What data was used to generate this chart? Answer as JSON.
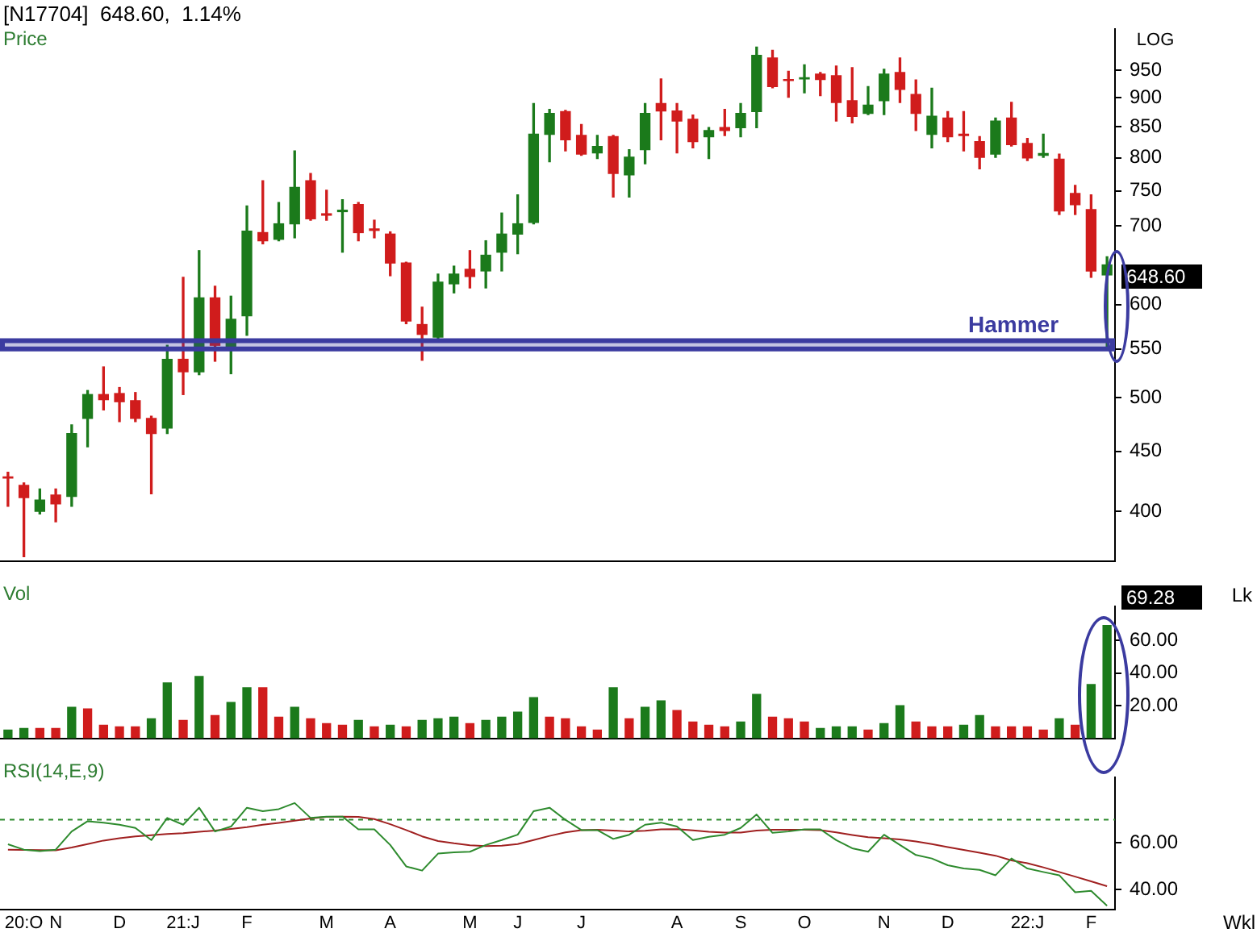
{
  "chart_data": [
    {
      "type": "candlestick",
      "title": "[N17704]  648.60,  1.14%",
      "ylabel": "Price",
      "categories": [
        null,
        null,
        null,
        null,
        null,
        null,
        null,
        null,
        null,
        null,
        null,
        null,
        null,
        null,
        null,
        null,
        null,
        null,
        null,
        null,
        null,
        null,
        null,
        null,
        null,
        null,
        null,
        null,
        null,
        null,
        null,
        null,
        null,
        null,
        null,
        null,
        null,
        null,
        null,
        null,
        null,
        null,
        null,
        null,
        null,
        null,
        null,
        null,
        null,
        null,
        null,
        null,
        null,
        null,
        null,
        null,
        null,
        null,
        null,
        null,
        null,
        null,
        null,
        null,
        null,
        null,
        null,
        null,
        null,
        null
      ],
      "ohlc": [
        [
          428,
          432,
          404,
          427
        ],
        [
          421,
          423,
          366,
          411
        ],
        [
          400,
          418,
          398,
          409
        ],
        [
          413,
          418,
          392,
          406
        ],
        [
          412,
          474,
          404,
          466
        ],
        [
          480,
          507,
          454,
          503
        ],
        [
          503,
          531,
          488,
          498
        ],
        [
          504,
          510,
          477,
          496
        ],
        [
          497,
          505,
          477,
          480
        ],
        [
          480,
          482,
          414,
          466
        ],
        [
          471,
          554,
          466,
          539
        ],
        [
          539,
          633,
          503,
          526
        ],
        [
          526,
          667,
          523,
          608
        ],
        [
          608,
          622,
          537,
          554
        ],
        [
          553,
          610,
          524,
          583
        ],
        [
          587,
          728,
          565,
          693
        ],
        [
          691,
          765,
          676,
          680
        ],
        [
          682,
          733,
          680,
          703
        ],
        [
          703,
          811,
          684,
          755
        ],
        [
          765,
          776,
          708,
          710
        ],
        [
          717,
          751,
          708,
          715
        ],
        [
          720,
          737,
          665,
          722
        ],
        [
          730,
          733,
          680,
          691
        ],
        [
          696,
          708,
          684,
          694
        ],
        [
          689,
          692,
          635,
          651
        ],
        [
          651,
          652,
          578,
          581
        ],
        [
          577,
          597,
          538,
          566
        ],
        [
          563,
          637,
          560,
          627
        ],
        [
          625,
          647,
          614,
          637
        ],
        [
          643,
          667,
          620,
          634
        ],
        [
          641,
          680,
          620,
          661
        ],
        [
          665,
          718,
          641,
          689
        ],
        [
          689,
          744,
          663,
          703
        ],
        [
          705,
          890,
          703,
          838
        ],
        [
          838,
          880,
          794,
          873
        ],
        [
          876,
          878,
          811,
          829
        ],
        [
          836,
          854,
          804,
          806
        ],
        [
          808,
          836,
          799,
          818
        ],
        [
          834,
          836,
          741,
          776
        ],
        [
          774,
          813,
          741,
          801
        ],
        [
          813,
          890,
          791,
          873
        ],
        [
          890,
          934,
          829,
          877
        ],
        [
          877,
          890,
          808,
          860
        ],
        [
          863,
          870,
          816,
          826
        ],
        [
          834,
          849,
          799,
          844
        ],
        [
          849,
          880,
          836,
          844
        ],
        [
          849,
          890,
          834,
          873
        ],
        [
          876,
          994,
          849,
          978
        ],
        [
          973,
          988,
          918,
          920
        ],
        [
          933,
          948,
          901,
          931
        ],
        [
          934,
          960,
          909,
          936
        ],
        [
          943,
          946,
          904,
          933
        ],
        [
          940,
          958,
          860,
          892
        ],
        [
          895,
          955,
          857,
          868
        ],
        [
          873,
          920,
          871,
          887
        ],
        [
          895,
          952,
          871,
          943
        ],
        [
          946,
          973,
          892,
          915
        ],
        [
          906,
          932,
          844,
          873
        ],
        [
          838,
          917,
          816,
          868
        ],
        [
          865,
          876,
          826,
          834
        ],
        [
          838,
          876,
          811,
          836
        ],
        [
          826,
          834,
          783,
          801
        ],
        [
          806,
          865,
          801,
          860
        ],
        [
          865,
          892,
          819,
          821
        ],
        [
          823,
          831,
          796,
          800
        ],
        [
          804,
          838,
          801,
          807
        ],
        [
          798,
          806,
          716,
          721
        ],
        [
          746,
          758,
          716,
          730
        ],
        [
          723,
          744,
          633,
          641
        ],
        [
          636,
          659,
          553,
          648.6
        ]
      ],
      "colors": [
        "#d01c1c",
        "#d01c1c",
        "#1b7a1b",
        "#d01c1c",
        "#1b7a1b",
        "#1b7a1b",
        "#d01c1c",
        "#d01c1c",
        "#d01c1c",
        "#d01c1c",
        "#1b7a1b",
        "#d01c1c",
        "#1b7a1b",
        "#d01c1c",
        "#1b7a1b",
        "#1b7a1b",
        "#d01c1c",
        "#1b7a1b",
        "#1b7a1b",
        "#d01c1c",
        "#d01c1c",
        "#1b7a1b",
        "#d01c1c",
        "#d01c1c",
        "#d01c1c",
        "#d01c1c",
        "#d01c1c",
        "#1b7a1b",
        "#1b7a1b",
        "#d01c1c",
        "#1b7a1b",
        "#1b7a1b",
        "#1b7a1b",
        "#1b7a1b",
        "#1b7a1b",
        "#d01c1c",
        "#d01c1c",
        "#1b7a1b",
        "#d01c1c",
        "#1b7a1b",
        "#1b7a1b",
        "#d01c1c",
        "#d01c1c",
        "#d01c1c",
        "#1b7a1b",
        "#d01c1c",
        "#1b7a1b",
        "#1b7a1b",
        "#d01c1c",
        "#d01c1c",
        "#1b7a1b",
        "#d01c1c",
        "#d01c1c",
        "#d01c1c",
        "#1b7a1b",
        "#1b7a1b",
        "#d01c1c",
        "#d01c1c",
        "#1b7a1b",
        "#d01c1c",
        "#d01c1c",
        "#d01c1c",
        "#1b7a1b",
        "#d01c1c",
        "#d01c1c",
        "#1b7a1b",
        "#d01c1c",
        "#d01c1c",
        "#d01c1c",
        "#1b7a1b"
      ],
      "log": true,
      "ylim": [
        363,
        1030
      ],
      "yticks": [
        400,
        450,
        500,
        550,
        600,
        700,
        750,
        800,
        850,
        900,
        950
      ],
      "bands": [
        {
          "axis": "y",
          "from": 550,
          "to": 559,
          "color": "#3b3ba0"
        }
      ],
      "annotations": [
        "LOG",
        "Hammer",
        "648.60"
      ],
      "tick_labels": "y"
    },
    {
      "type": "bar",
      "ylabel": "Vol",
      "categories": [
        null,
        null,
        null,
        null,
        null,
        null,
        null,
        null,
        null,
        null,
        null,
        null,
        null,
        null,
        null,
        null,
        null,
        null,
        null,
        null,
        null,
        null,
        null,
        null,
        null,
        null,
        null,
        null,
        null,
        null,
        null,
        null,
        null,
        null,
        null,
        null,
        null,
        null,
        null,
        null,
        null,
        null,
        null,
        null,
        null,
        null,
        null,
        null,
        null,
        null,
        null,
        null,
        null,
        null,
        null,
        null,
        null,
        null,
        null,
        null,
        null,
        null,
        null,
        null,
        null,
        null,
        null,
        null,
        null,
        null
      ],
      "values": [
        5,
        6,
        6,
        6,
        19,
        18,
        8,
        7,
        7,
        12,
        34,
        11,
        38,
        14,
        22,
        31,
        31,
        13,
        19,
        12,
        9,
        8,
        11,
        7,
        8,
        7,
        11,
        12,
        13,
        9,
        11,
        13,
        16,
        25,
        13,
        12,
        7,
        5,
        31,
        12,
        19,
        23,
        17,
        10,
        8,
        7,
        10,
        27,
        13,
        12,
        10,
        6,
        7,
        7,
        5,
        9,
        20,
        10,
        7,
        7,
        8,
        14,
        7,
        7,
        7,
        5,
        12,
        8,
        33,
        69.28
      ],
      "colors": [
        "#1b7a1b",
        "#1b7a1b",
        "#d01c1c",
        "#d01c1c",
        "#1b7a1b",
        "#d01c1c",
        "#d01c1c",
        "#d01c1c",
        "#d01c1c",
        "#1b7a1b",
        "#1b7a1b",
        "#d01c1c",
        "#1b7a1b",
        "#d01c1c",
        "#1b7a1b",
        "#1b7a1b",
        "#d01c1c",
        "#d01c1c",
        "#1b7a1b",
        "#d01c1c",
        "#d01c1c",
        "#d01c1c",
        "#1b7a1b",
        "#d01c1c",
        "#1b7a1b",
        "#d01c1c",
        "#1b7a1b",
        "#1b7a1b",
        "#1b7a1b",
        "#d01c1c",
        "#1b7a1b",
        "#1b7a1b",
        "#1b7a1b",
        "#1b7a1b",
        "#d01c1c",
        "#d01c1c",
        "#d01c1c",
        "#d01c1c",
        "#1b7a1b",
        "#d01c1c",
        "#1b7a1b",
        "#1b7a1b",
        "#d01c1c",
        "#d01c1c",
        "#d01c1c",
        "#d01c1c",
        "#1b7a1b",
        "#1b7a1b",
        "#d01c1c",
        "#d01c1c",
        "#d01c1c",
        "#1b7a1b",
        "#1b7a1b",
        "#1b7a1b",
        "#d01c1c",
        "#1b7a1b",
        "#1b7a1b",
        "#d01c1c",
        "#d01c1c",
        "#d01c1c",
        "#1b7a1b",
        "#1b7a1b",
        "#d01c1c",
        "#d01c1c",
        "#d01c1c",
        "#d01c1c",
        "#1b7a1b",
        "#d01c1c",
        "#1b7a1b",
        "#1b7a1b"
      ],
      "ylim": [
        0,
        81
      ],
      "yticks": [
        {
          "value": 20,
          "label": "20.00"
        },
        {
          "value": 40,
          "label": "40.00"
        },
        {
          "value": 60,
          "label": "60.00"
        }
      ],
      "annotations": [
        "Lk",
        "69.28"
      ],
      "tick_labels": "y"
    },
    {
      "type": "line",
      "ylabel": "RSI(14,E,9)",
      "categories": [
        null,
        "20:O",
        null,
        "N",
        null,
        null,
        null,
        "D",
        null,
        null,
        null,
        "21:J",
        null,
        null,
        null,
        "F",
        null,
        null,
        null,
        null,
        "M",
        null,
        null,
        null,
        "A",
        null,
        null,
        null,
        null,
        "M",
        null,
        null,
        "J",
        null,
        null,
        null,
        "J",
        null,
        null,
        null,
        null,
        null,
        "A",
        null,
        null,
        null,
        "S",
        null,
        null,
        null,
        "O",
        null,
        null,
        null,
        null,
        "N",
        null,
        null,
        null,
        "D",
        null,
        null,
        null,
        null,
        "22:J",
        null,
        null,
        null,
        "F",
        null
      ],
      "series": [
        {
          "color": "#2e8b2e",
          "values": [
            59.4,
            57.1,
            56.5,
            57.1,
            64.9,
            69.3,
            68.7,
            67.8,
            66.4,
            61.2,
            70.7,
            67.8,
            75.1,
            64.9,
            67,
            75.1,
            73.6,
            74.5,
            77.1,
            70.7,
            71.3,
            71.3,
            65.8,
            65.8,
            59.1,
            49.9,
            48.1,
            55.4,
            55.9,
            56.2,
            59.1,
            61.2,
            63.5,
            73.6,
            75.1,
            69.9,
            65.5,
            65.5,
            61.7,
            63.5,
            67.8,
            68.7,
            67,
            61.2,
            62.6,
            63.5,
            66.4,
            72.2,
            64.3,
            64.9,
            65.8,
            65.8,
            61.2,
            57.7,
            56.2,
            63.5,
            59.1,
            54.8,
            53.3,
            50.4,
            49,
            48.4,
            46.1,
            53.3,
            49,
            47.5,
            46.1,
            38.8,
            39.4,
            33
          ]
        },
        {
          "color": "#a02020",
          "values": [
            57.1,
            57,
            56.9,
            56.8,
            58,
            59.5,
            61,
            62,
            62.8,
            63.3,
            63.8,
            64.2,
            64.8,
            65.3,
            66,
            66.8,
            67.8,
            68.6,
            69.5,
            70.5,
            71.2,
            71.3,
            71.2,
            70.2,
            68,
            65.5,
            62.8,
            60.8,
            59.8,
            59,
            58.6,
            58.8,
            59.5,
            61.2,
            63,
            64.5,
            65.5,
            65.6,
            65.3,
            64.9,
            65.2,
            65.8,
            65.9,
            65.4,
            64.8,
            64.4,
            64.4,
            65.3,
            65.6,
            65.6,
            65.6,
            65.5,
            64.5,
            63.4,
            62.4,
            62,
            61.5,
            60.6,
            59.5,
            58.2,
            57,
            55.8,
            54.5,
            52.5,
            51.3,
            49.5,
            47.5,
            45.5,
            43.5,
            41.4
          ]
        }
      ],
      "ylim": [
        31.5,
        88
      ],
      "yticks": [
        {
          "value": 40,
          "label": "40.00"
        },
        {
          "value": 60,
          "label": "60.00"
        }
      ],
      "ref_lines": [
        {
          "axis": "y",
          "value": 70,
          "color": "#2e8b2e",
          "line_style": "dashed"
        }
      ],
      "annotations": [
        "Wkl"
      ]
    }
  ]
}
